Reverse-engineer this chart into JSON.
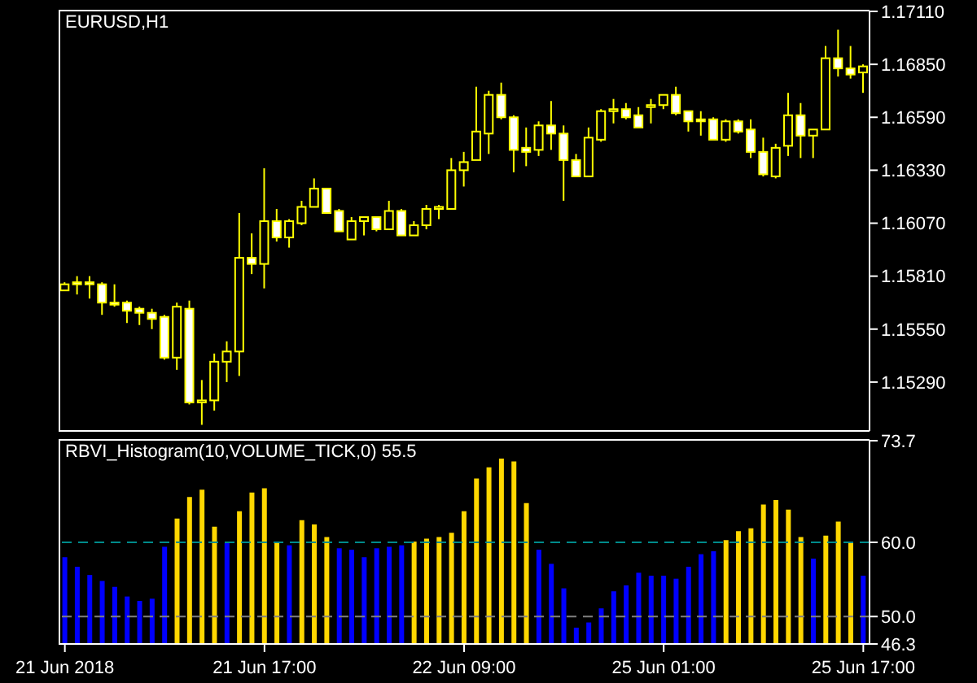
{
  "chart_data": [
    {
      "type": "candlestick",
      "title": "EURUSD,H1",
      "categories": [
        null,
        null,
        null,
        null,
        null,
        null,
        null,
        null,
        null,
        null,
        null,
        null,
        null,
        null,
        null,
        null,
        null,
        null,
        null,
        null,
        null,
        null,
        null,
        null,
        null,
        null,
        null,
        null,
        null,
        null,
        null,
        null,
        null,
        null,
        null,
        null,
        null,
        null,
        null,
        null,
        null,
        null,
        null,
        null,
        null,
        null,
        null,
        null,
        null,
        null,
        null,
        null,
        null,
        null,
        null,
        null,
        null,
        null,
        null,
        null,
        null,
        null,
        null,
        null,
        null
      ],
      "ohlc": [
        [
          1.1574,
          1.1578,
          1.1574,
          1.1577
        ],
        [
          1.1578,
          1.1581,
          1.1572,
          1.1577
        ],
        [
          1.1578,
          1.1581,
          1.157,
          1.1577
        ],
        [
          1.1577,
          1.1578,
          1.1562,
          1.1568
        ],
        [
          1.1568,
          1.1577,
          1.1566,
          1.1567
        ],
        [
          1.1568,
          1.1569,
          1.1558,
          1.1564
        ],
        [
          1.1565,
          1.1566,
          1.1557,
          1.1563
        ],
        [
          1.1563,
          1.1565,
          1.1555,
          1.156
        ],
        [
          1.1561,
          1.1562,
          1.154,
          1.1541
        ],
        [
          1.1541,
          1.1568,
          1.1535,
          1.1566
        ],
        [
          1.1565,
          1.1569,
          1.1518,
          1.1519
        ],
        [
          1.1519,
          1.153,
          1.1508,
          1.152
        ],
        [
          1.152,
          1.1543,
          1.1515,
          1.1539
        ],
        [
          1.1539,
          1.1549,
          1.1529,
          1.1544
        ],
        [
          1.1544,
          1.1612,
          1.1532,
          1.159
        ],
        [
          1.159,
          1.1602,
          1.1582,
          1.1587
        ],
        [
          1.1587,
          1.1634,
          1.1575,
          1.1608
        ],
        [
          1.1608,
          1.1614,
          1.1598,
          1.16
        ],
        [
          1.16,
          1.1609,
          1.1595,
          1.1608
        ],
        [
          1.1607,
          1.1618,
          1.1606,
          1.1615
        ],
        [
          1.1615,
          1.1629,
          1.1615,
          1.1624
        ],
        [
          1.1624,
          1.1624,
          1.1612,
          1.1612
        ],
        [
          1.1613,
          1.1614,
          1.1603,
          1.1603
        ],
        [
          1.1599,
          1.161,
          1.1599,
          1.1608
        ],
        [
          1.1608,
          1.161,
          1.1601,
          1.161
        ],
        [
          1.161,
          1.161,
          1.1603,
          1.1604
        ],
        [
          1.1604,
          1.1618,
          1.1604,
          1.1613
        ],
        [
          1.1613,
          1.1614,
          1.1601,
          1.1601
        ],
        [
          1.1601,
          1.1608,
          1.1601,
          1.1606
        ],
        [
          1.1606,
          1.1616,
          1.1604,
          1.1614
        ],
        [
          1.1614,
          1.1616,
          1.1609,
          1.1615
        ],
        [
          1.1614,
          1.1639,
          1.1614,
          1.1633
        ],
        [
          1.1633,
          1.1642,
          1.1625,
          1.1637
        ],
        [
          1.1638,
          1.1674,
          1.1638,
          1.1652
        ],
        [
          1.1651,
          1.1672,
          1.1641,
          1.167
        ],
        [
          1.167,
          1.1676,
          1.1658,
          1.1659
        ],
        [
          1.1659,
          1.166,
          1.1632,
          1.1643
        ],
        [
          1.1644,
          1.1654,
          1.1635,
          1.1642
        ],
        [
          1.1643,
          1.1657,
          1.164,
          1.1655
        ],
        [
          1.1655,
          1.1667,
          1.1643,
          1.1651
        ],
        [
          1.1651,
          1.1655,
          1.1618,
          1.1638
        ],
        [
          1.1638,
          1.1641,
          1.163,
          1.163
        ],
        [
          1.163,
          1.1654,
          1.163,
          1.1649
        ],
        [
          1.1648,
          1.1663,
          1.1647,
          1.1662
        ],
        [
          1.1662,
          1.1668,
          1.1656,
          1.1663
        ],
        [
          1.1663,
          1.1666,
          1.1658,
          1.1659
        ],
        [
          1.166,
          1.1664,
          1.1654,
          1.1654
        ],
        [
          1.1664,
          1.1668,
          1.1656,
          1.1665
        ],
        [
          1.1665,
          1.167,
          1.1663,
          1.167
        ],
        [
          1.167,
          1.1674,
          1.166,
          1.1661
        ],
        [
          1.1662,
          1.1662,
          1.1652,
          1.1657
        ],
        [
          1.1658,
          1.1662,
          1.165,
          1.1657
        ],
        [
          1.1658,
          1.1659,
          1.1648,
          1.1648
        ],
        [
          1.1648,
          1.1658,
          1.1647,
          1.1657
        ],
        [
          1.1657,
          1.1658,
          1.1651,
          1.1652
        ],
        [
          1.1653,
          1.1658,
          1.1639,
          1.1642
        ],
        [
          1.1642,
          1.1649,
          1.163,
          1.1631
        ],
        [
          1.163,
          1.1646,
          1.1629,
          1.1644
        ],
        [
          1.1645,
          1.1671,
          1.164,
          1.166
        ],
        [
          1.166,
          1.1666,
          1.1639,
          1.165
        ],
        [
          1.165,
          1.1653,
          1.1639,
          1.1653
        ],
        [
          1.1653,
          1.1694,
          1.1653,
          1.1688
        ],
        [
          1.1688,
          1.1702,
          1.1679,
          1.1683
        ],
        [
          1.1683,
          1.1694,
          1.1678,
          1.168
        ],
        [
          1.1681,
          1.1685,
          1.1671,
          1.1684
        ]
      ],
      "color": "#ffff00",
      "ylim": [
        1.1505,
        1.1711
      ],
      "yticks": [
        {
          "value": 1.1529,
          "label": "1.15290"
        },
        {
          "value": 1.1555,
          "label": "1.15550"
        },
        {
          "value": 1.1581,
          "label": "1.15810"
        },
        {
          "value": 1.1607,
          "label": "1.16070"
        },
        {
          "value": 1.1633,
          "label": "1.16330"
        },
        {
          "value": 1.1659,
          "label": "1.16590"
        },
        {
          "value": 1.1685,
          "label": "1.16850"
        },
        {
          "value": 1.1711,
          "label": "1.17110"
        }
      ],
      "tick_labels": "y"
    },
    {
      "type": "bar",
      "title": "RBVI_Histogram(10,VOLUME_TICK,0) 55.5",
      "categories": [
        "21 Jun 2018",
        null,
        null,
        null,
        null,
        null,
        null,
        null,
        null,
        null,
        null,
        null,
        null,
        null,
        null,
        null,
        "21 Jun 17:00",
        null,
        null,
        null,
        null,
        null,
        null,
        null,
        null,
        null,
        null,
        null,
        null,
        null,
        null,
        null,
        "22 Jun 09:00",
        null,
        null,
        null,
        null,
        null,
        null,
        null,
        null,
        null,
        null,
        null,
        null,
        null,
        null,
        null,
        "25 Jun 01:00",
        null,
        null,
        null,
        null,
        null,
        null,
        null,
        null,
        null,
        null,
        null,
        null,
        null,
        null,
        null,
        "25 Jun 17:00"
      ],
      "values": [
        58.0,
        56.7,
        55.6,
        54.8,
        54.0,
        52.7,
        52.1,
        52.4,
        59.4,
        63.2,
        66.1,
        67.1,
        62.1,
        59.9,
        64.2,
        66.7,
        67.3,
        60.1,
        59.6,
        63.0,
        62.4,
        60.7,
        59.2,
        59.0,
        58.0,
        59.2,
        59.4,
        59.6,
        60.1,
        60.5,
        60.7,
        61.3,
        64.2,
        68.6,
        70.1,
        71.3,
        70.9,
        65.3,
        59.0,
        57.1,
        53.8,
        48.5,
        49.2,
        51.1,
        53.4,
        54.2,
        55.9,
        55.5,
        55.5,
        55.1,
        56.7,
        58.4,
        58.8,
        60.3,
        61.5,
        61.9,
        65.1,
        65.7,
        64.4,
        60.7,
        57.8,
        60.9,
        62.8,
        60.1,
        55.5
      ],
      "colors": [
        "#0000ff",
        "#0000ff",
        "#0000ff",
        "#0000ff",
        "#0000ff",
        "#0000ff",
        "#0000ff",
        "#0000ff",
        "#0000ff",
        "#ffd700",
        "#ffd700",
        "#ffd700",
        "#ffd700",
        "#0000ff",
        "#ffd700",
        "#ffd700",
        "#ffd700",
        "#ffd700",
        "#0000ff",
        "#ffd700",
        "#ffd700",
        "#ffd700",
        "#0000ff",
        "#0000ff",
        "#0000ff",
        "#0000ff",
        "#0000ff",
        "#0000ff",
        "#ffd700",
        "#ffd700",
        "#ffd700",
        "#ffd700",
        "#ffd700",
        "#ffd700",
        "#ffd700",
        "#ffd700",
        "#ffd700",
        "#ffd700",
        "#0000ff",
        "#0000ff",
        "#0000ff",
        "#0000ff",
        "#0000ff",
        "#0000ff",
        "#0000ff",
        "#0000ff",
        "#0000ff",
        "#0000ff",
        "#0000ff",
        "#0000ff",
        "#0000ff",
        "#0000ff",
        "#0000ff",
        "#ffd700",
        "#ffd700",
        "#ffd700",
        "#ffd700",
        "#ffd700",
        "#ffd700",
        "#ffd700",
        "#0000ff",
        "#ffd700",
        "#ffd700",
        "#ffd700",
        "#0000ff"
      ],
      "ylim": [
        46.3,
        73.7
      ],
      "yticks": [
        46.3,
        {
          "value": 50,
          "label": "50.0"
        },
        {
          "value": 60,
          "label": "60.0"
        },
        73.7
      ],
      "ref_lines": [
        {
          "axis": "y",
          "value": 60,
          "color": "#008b8b",
          "line_style": "dashed"
        },
        {
          "axis": "y",
          "value": 50,
          "color": "#808080",
          "line_style": "dashed"
        }
      ]
    }
  ]
}
